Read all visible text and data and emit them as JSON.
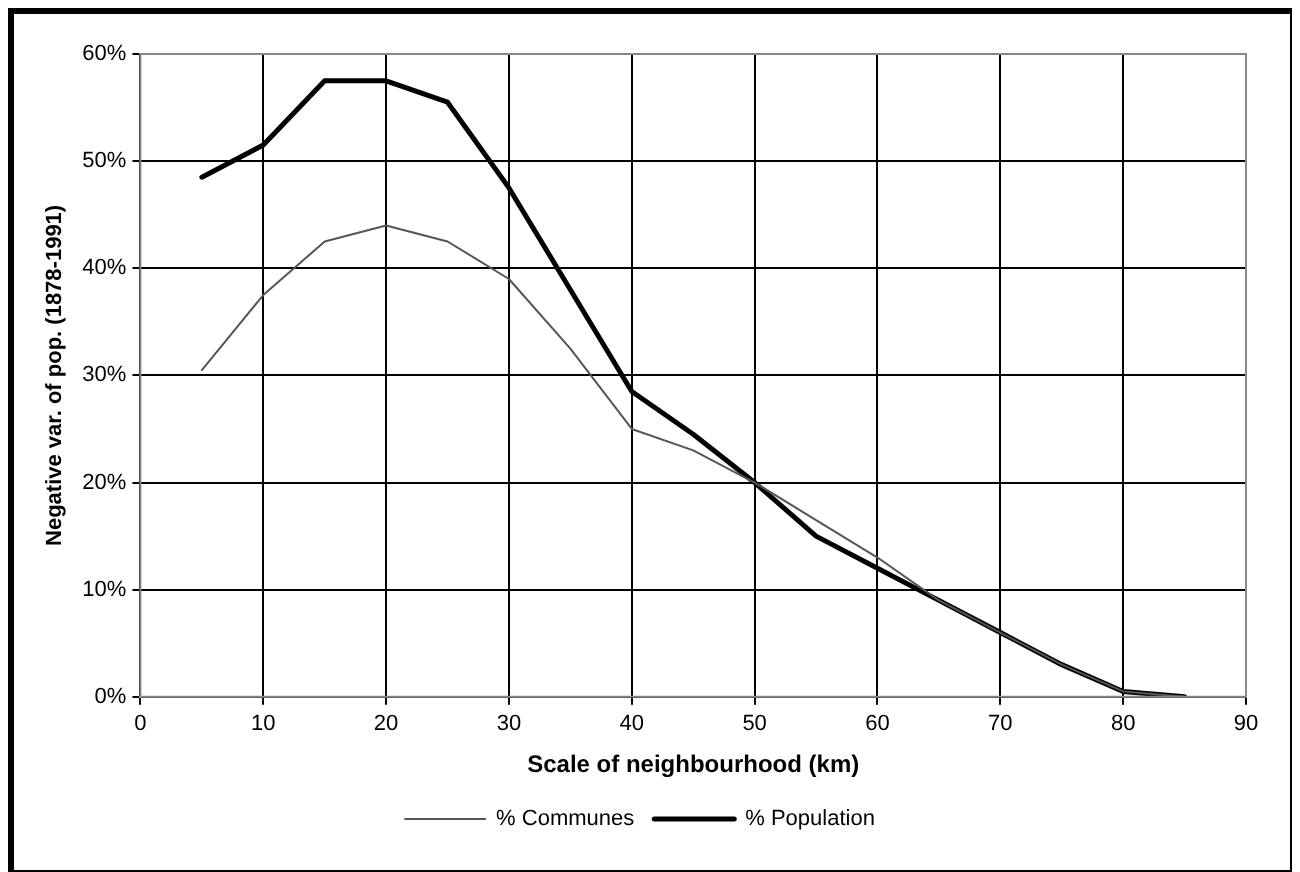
{
  "chart_data": {
    "type": "line",
    "xlabel": "Scale of neighbourhood (km)",
    "ylabel": "Negative var. of pop. (1878-1991)",
    "x": [
      5,
      10,
      15,
      20,
      25,
      30,
      35,
      40,
      45,
      50,
      55,
      60,
      65,
      70,
      75,
      80,
      85
    ],
    "series": [
      {
        "name": "% Communes",
        "color": "#555555",
        "values": [
          30.5,
          37.5,
          42.5,
          44,
          42.5,
          39,
          32.5,
          25,
          23,
          20,
          16.5,
          13,
          9,
          6,
          3,
          0.5,
          0
        ]
      },
      {
        "name": "% Population",
        "color": "#000000",
        "values": [
          48.5,
          51.5,
          57.5,
          57.5,
          55.5,
          47.5,
          38,
          28.5,
          24.5,
          20,
          15,
          12,
          9,
          6,
          3,
          0.5,
          0
        ]
      }
    ],
    "xlim": [
      0,
      90
    ],
    "xticks": [
      0,
      10,
      20,
      30,
      40,
      50,
      60,
      70,
      80,
      90
    ],
    "ylim": [
      0,
      60
    ],
    "yticks": [
      {
        "value": 0,
        "label": "0%"
      },
      {
        "value": 10,
        "label": "10%"
      },
      {
        "value": 20,
        "label": "20%"
      },
      {
        "value": 30,
        "label": "30%"
      },
      {
        "value": 40,
        "label": "40%"
      },
      {
        "value": 50,
        "label": "50%"
      },
      {
        "value": 60,
        "label": "60%"
      }
    ],
    "grid": true,
    "legend": "bottom",
    "marker": "none",
    "line_style": "solid"
  }
}
